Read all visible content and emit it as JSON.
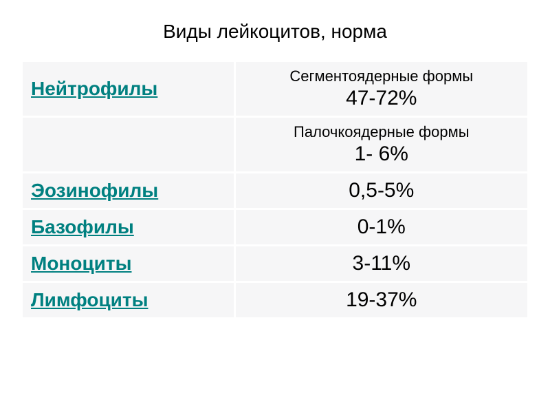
{
  "title": "Виды лейкоцитов, норма",
  "table": {
    "background_color": "#f6f6f7",
    "border_color": "#ffffff",
    "link_color": "#008080",
    "text_color": "#000000",
    "rows": [
      {
        "type_label": "Нейтрофилы",
        "subtype_label": "Сегментоядерные формы",
        "subtype_value": "47-72%"
      },
      {
        "type_label": "",
        "subtype_label": "Палочкоядерные формы",
        "subtype_value": "1- 6%"
      },
      {
        "type_label": "Эозинофилы",
        "simple_value": "0,5-5%"
      },
      {
        "type_label": "Базофилы",
        "simple_value": "0-1%"
      },
      {
        "type_label": "Моноциты",
        "simple_value": "3-11%"
      },
      {
        "type_label": "Лимфоциты",
        "simple_value": "19-37%"
      }
    ]
  }
}
